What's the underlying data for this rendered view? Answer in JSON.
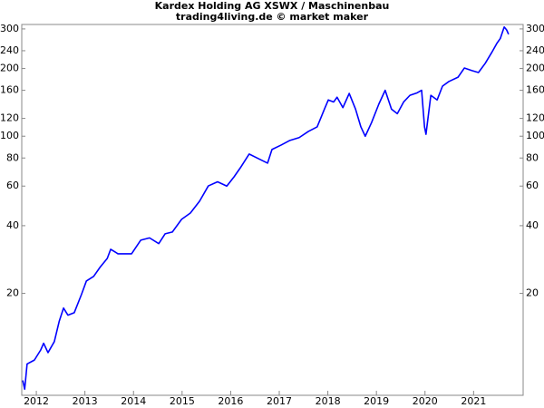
{
  "chart_data": {
    "type": "line",
    "title": "Kardex Holding AG XSWX / Maschinenbau",
    "subtitle": "trading4living.de © market maker",
    "log_scale_y": true,
    "ylim": [
      7.04,
      314
    ],
    "yticks": [
      20,
      40,
      60,
      80,
      100,
      120,
      160,
      200,
      240,
      300
    ],
    "xlim": [
      2011.7,
      2022.02
    ],
    "xticks": [
      2012,
      2013,
      2014,
      2015,
      2016,
      2017,
      2018,
      2019,
      2020,
      2021
    ],
    "series": [
      {
        "color": "#0000ff",
        "x": [
          2011.72,
          2011.76,
          2011.81,
          2011.96,
          2012.09,
          2012.15,
          2012.24,
          2012.37,
          2012.47,
          2012.56,
          2012.65,
          2012.78,
          2012.93,
          2013.03,
          2013.18,
          2013.31,
          2013.46,
          2013.53,
          2013.68,
          2013.96,
          2014.15,
          2014.33,
          2014.52,
          2014.65,
          2014.8,
          2014.99,
          2015.17,
          2015.36,
          2015.54,
          2015.73,
          2015.92,
          2016.07,
          2016.2,
          2016.38,
          2016.57,
          2016.76,
          2016.85,
          2017.04,
          2017.22,
          2017.41,
          2017.6,
          2017.78,
          2017.93,
          2018.01,
          2018.12,
          2018.19,
          2018.31,
          2018.44,
          2018.57,
          2018.68,
          2018.77,
          2018.9,
          2019.05,
          2019.18,
          2019.31,
          2019.43,
          2019.56,
          2019.69,
          2019.84,
          2019.93,
          2019.99,
          2020.02,
          2020.12,
          2020.25,
          2020.36,
          2020.49,
          2020.68,
          2020.81,
          2020.96,
          2021.1,
          2021.24,
          2021.37,
          2021.48,
          2021.55,
          2021.63,
          2021.68,
          2021.72
        ],
        "values": [
          8.2,
          7.5,
          9.7,
          10.1,
          11.2,
          12.0,
          10.9,
          12.2,
          15.0,
          17.2,
          16.0,
          16.4,
          19.8,
          22.7,
          23.8,
          26.1,
          28.6,
          31.4,
          30.0,
          30.0,
          34.5,
          35.3,
          33.3,
          36.8,
          37.5,
          42.7,
          45.5,
          51.4,
          60.1,
          62.7,
          60.0,
          66.0,
          72.4,
          83.3,
          79.5,
          75.9,
          87.3,
          91.4,
          95.8,
          98.6,
          105,
          110,
          132,
          145,
          142,
          149,
          134,
          155,
          132,
          110,
          100,
          115,
          139,
          160,
          132,
          126,
          142,
          152,
          156,
          160,
          110,
          102,
          152,
          145,
          167,
          175,
          183,
          201,
          196,
          192,
          211,
          235,
          259,
          272,
          306,
          297,
          284
        ]
      }
    ]
  }
}
